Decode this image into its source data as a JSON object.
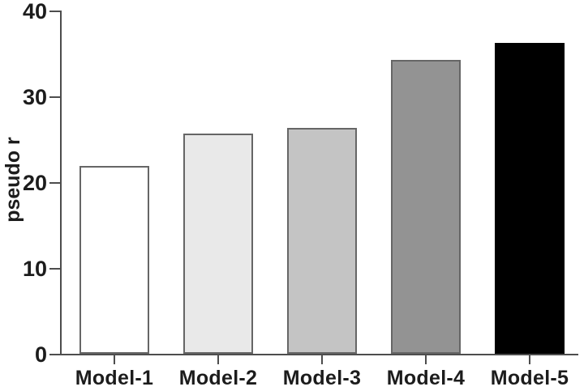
{
  "figure": {
    "background": "#ffffff"
  },
  "chart_data": {
    "type": "bar",
    "title": "",
    "xlabel": "",
    "ylabel": "pseudo r",
    "categories": [
      "Model-1",
      "Model-2",
      "Model-3",
      "Model-4",
      "Model-5"
    ],
    "values": [
      22,
      25.8,
      26.4,
      34.3,
      36.3
    ],
    "ylim": [
      0,
      40
    ],
    "yticks": [
      0,
      10,
      20,
      30,
      40
    ],
    "grid": false,
    "legend": "none",
    "bar_fill_colors": [
      "#ffffff",
      "#e9e9e9",
      "#c4c4c4",
      "#939393",
      "#000000"
    ],
    "bar_border_colors": [
      "#666666",
      "#666666",
      "#666666",
      "#666666",
      "#000000"
    ],
    "axis_color": "#4d4d4d",
    "text_color": "#1c1c1c"
  }
}
